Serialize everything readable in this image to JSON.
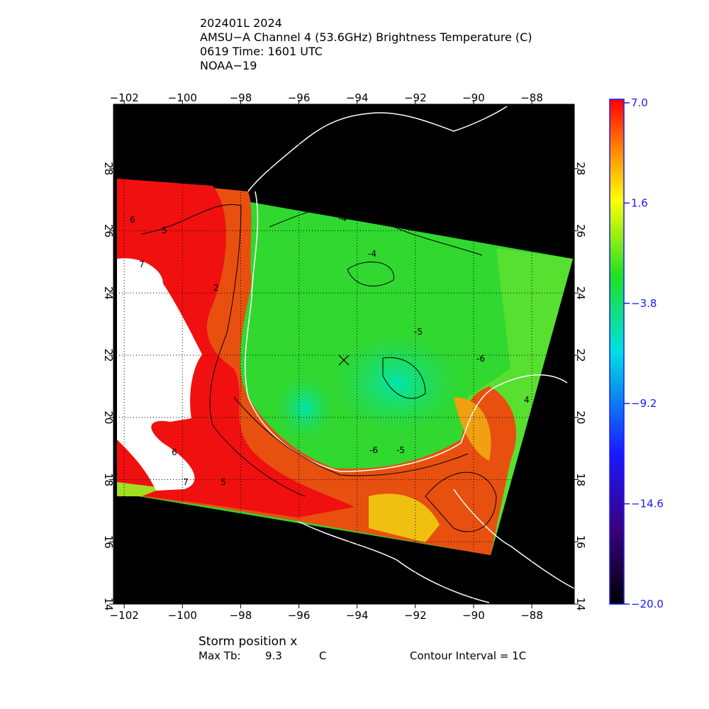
{
  "header": {
    "lines": [
      "202401L 2024",
      "AMSU−A Channel 4 (53.6GHz) Brightness Temperature (C)",
      "0619 Time: 1601 UTC",
      "NOAA−19"
    ]
  },
  "map": {
    "xlim": [
      -102.37,
      -86.54
    ],
    "ylim": [
      14,
      30.07
    ],
    "xticks": [
      -102,
      -100,
      -98,
      -96,
      -94,
      -92,
      -90,
      -88
    ],
    "yticks": [
      14,
      16,
      18,
      20,
      22,
      24,
      26,
      28
    ],
    "contour_labels": [
      "-4",
      "-4",
      "-5",
      "-6",
      "-6",
      "-5",
      "6",
      "5",
      "7",
      "2",
      "4",
      "6",
      "7",
      "5"
    ]
  },
  "colorbar": {
    "lim": [
      -20,
      7
    ],
    "ticks": [
      {
        "value": 7,
        "label": "7.0"
      },
      1.6,
      -3.8,
      -9.2,
      -14.6,
      {
        "value": -20,
        "label": "−20.0"
      }
    ]
  },
  "footer": {
    "storm_position": "Storm position x",
    "max_tb_label": "Max Tb:",
    "max_tb": 9.3,
    "max_tb_unit": "C",
    "contour_interval": "Contour Interval = 1C"
  }
}
